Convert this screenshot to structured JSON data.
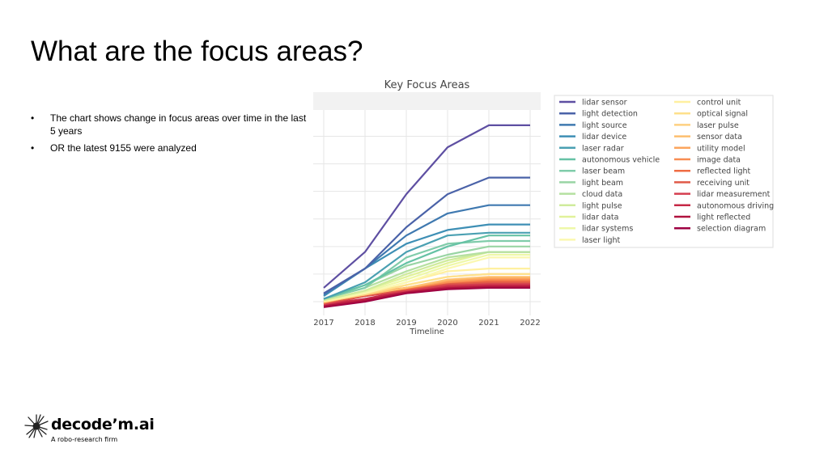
{
  "slide": {
    "title": "What are the focus areas?",
    "bullets": [
      "The chart shows change in focus areas over time in the last 5 years",
      "OR the latest 9155 were analyzed"
    ]
  },
  "logo": {
    "brand": "decode’m.ai",
    "tagline": "A robo-research firm"
  },
  "chart_data": {
    "type": "line",
    "title": "Key Focus Areas",
    "xlabel": "Timeline",
    "ylabel": "",
    "x": [
      2017,
      2018,
      2019,
      2020,
      2021,
      2022
    ],
    "ylim": [
      -0.5,
      7.6
    ],
    "grid": true,
    "legend_position": "right",
    "series": [
      {
        "name": "lidar sensor",
        "color": "#5e4fa2",
        "values": [
          0.5,
          1.8,
          3.9,
          5.6,
          6.4,
          6.4
        ]
      },
      {
        "name": "light detection",
        "color": "#4a62a8",
        "values": [
          0.3,
          1.2,
          2.7,
          3.9,
          4.5,
          4.5
        ]
      },
      {
        "name": "light source",
        "color": "#3f79b0",
        "values": [
          0.25,
          1.2,
          2.4,
          3.2,
          3.5,
          3.5
        ]
      },
      {
        "name": "lidar device",
        "color": "#3e8fb5",
        "values": [
          0.2,
          1.2,
          2.1,
          2.6,
          2.8,
          2.8
        ]
      },
      {
        "name": "laser radar",
        "color": "#4aa0b2",
        "values": [
          0.1,
          0.7,
          1.8,
          2.4,
          2.5,
          2.5
        ]
      },
      {
        "name": "autonomous vehicle",
        "color": "#66c2a5",
        "values": [
          0.1,
          0.6,
          1.4,
          2.0,
          2.4,
          2.4
        ]
      },
      {
        "name": "laser beam",
        "color": "#80ccaa",
        "values": [
          0.1,
          0.5,
          1.6,
          2.1,
          2.2,
          2.2
        ]
      },
      {
        "name": "light beam",
        "color": "#99d5a4",
        "values": [
          0.1,
          0.6,
          1.3,
          1.7,
          2.0,
          2.0
        ]
      },
      {
        "name": "cloud data",
        "color": "#b5e0a0",
        "values": [
          0.1,
          0.5,
          1.1,
          1.6,
          1.8,
          1.8
        ]
      },
      {
        "name": "light pulse",
        "color": "#cfeb9c",
        "values": [
          0.05,
          0.4,
          1.0,
          1.5,
          1.8,
          1.8
        ]
      },
      {
        "name": "lidar data",
        "color": "#e1f29a",
        "values": [
          0.05,
          0.4,
          0.9,
          1.4,
          1.8,
          1.8
        ]
      },
      {
        "name": "lidar systems",
        "color": "#eef8a8",
        "values": [
          0.05,
          0.35,
          0.8,
          1.3,
          1.7,
          1.7
        ]
      },
      {
        "name": "laser light",
        "color": "#fbf8b0",
        "values": [
          0.05,
          0.3,
          0.7,
          1.2,
          1.6,
          1.6
        ]
      },
      {
        "name": "control unit",
        "color": "#fff0a0",
        "values": [
          0.0,
          0.3,
          0.7,
          1.1,
          1.2,
          1.2
        ]
      },
      {
        "name": "optical signal",
        "color": "#fee08b",
        "values": [
          0.0,
          0.3,
          0.6,
          0.9,
          1.0,
          1.0
        ]
      },
      {
        "name": "laser pulse",
        "color": "#fed080",
        "values": [
          0.0,
          0.25,
          0.6,
          0.9,
          1.0,
          1.0
        ]
      },
      {
        "name": "sensor data",
        "color": "#fdbf6f",
        "values": [
          0.0,
          0.25,
          0.5,
          0.8,
          0.9,
          0.9
        ]
      },
      {
        "name": "utility model",
        "color": "#fca55d",
        "values": [
          0.0,
          0.25,
          0.5,
          0.75,
          0.85,
          0.85
        ]
      },
      {
        "name": "image data",
        "color": "#f88d52",
        "values": [
          -0.05,
          0.3,
          0.5,
          0.7,
          0.8,
          0.8
        ]
      },
      {
        "name": "reflected light",
        "color": "#ef6c43",
        "values": [
          -0.05,
          0.35,
          0.45,
          0.7,
          0.75,
          0.75
        ]
      },
      {
        "name": "receiving unit",
        "color": "#e05a48",
        "values": [
          -0.05,
          0.2,
          0.45,
          0.65,
          0.7,
          0.7
        ]
      },
      {
        "name": "lidar measurement",
        "color": "#d53e4f",
        "values": [
          -0.1,
          0.2,
          0.4,
          0.6,
          0.65,
          0.65
        ]
      },
      {
        "name": "autonomous driving",
        "color": "#c62846",
        "values": [
          -0.1,
          0.1,
          0.4,
          0.55,
          0.6,
          0.6
        ]
      },
      {
        "name": "light reflected",
        "color": "#b0123f",
        "values": [
          -0.15,
          0.05,
          0.35,
          0.5,
          0.55,
          0.55
        ]
      },
      {
        "name": "selection diagram",
        "color": "#9e0142",
        "values": [
          -0.2,
          0.0,
          0.3,
          0.45,
          0.5,
          0.5
        ]
      }
    ]
  }
}
